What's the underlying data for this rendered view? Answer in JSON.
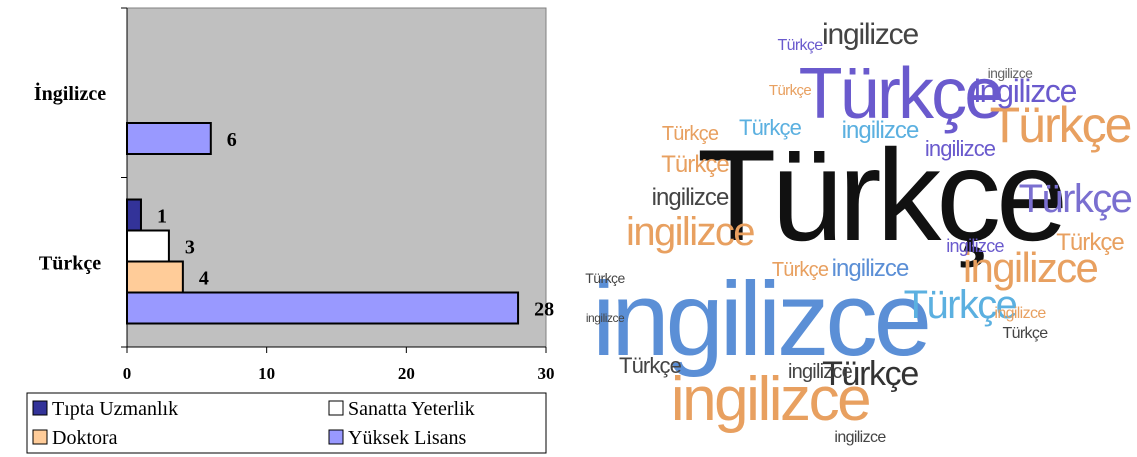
{
  "chart_data": {
    "type": "bar",
    "orientation": "horizontal",
    "categories": [
      "İngilizce",
      "Türkçe"
    ],
    "series": [
      {
        "name": "Tıpta Uzmanlık",
        "color": "#333399",
        "values": [
          null,
          1
        ]
      },
      {
        "name": "Sanatta Yeterlik",
        "color": "#ffffff",
        "values": [
          null,
          3
        ]
      },
      {
        "name": "Doktora",
        "color": "#ffcc99",
        "values": [
          null,
          4
        ]
      },
      {
        "name": "Yüksek Lisans",
        "color": "#9999ff",
        "values": [
          6,
          28
        ]
      }
    ],
    "xlim": [
      0,
      30
    ],
    "xticks": [
      0,
      10,
      20,
      30
    ],
    "grid": false,
    "legend": "bottom"
  },
  "word_cloud": {
    "words": [
      "Türkçe",
      "ingilizce",
      "Türkçe",
      "ingilizce",
      "Türkçe",
      "ingilizce",
      "Türkçe",
      "Türkçe",
      "Türkçe",
      "ingilizce",
      "ingilizce",
      "ingilizce",
      "Türkçe",
      "ingilizce",
      "ingilizce",
      "Türkçe",
      "ingilizce",
      "ingilizce",
      "Türkçe",
      "Türkçe",
      "Türkçe",
      "ingilizce",
      "Türkçe",
      "ingilizce",
      "Türkçe",
      "ingilizce",
      "Türkçe",
      "ingilizce",
      "Türkçe",
      "ingilizce",
      "Türkçe",
      "ingilizce"
    ]
  }
}
